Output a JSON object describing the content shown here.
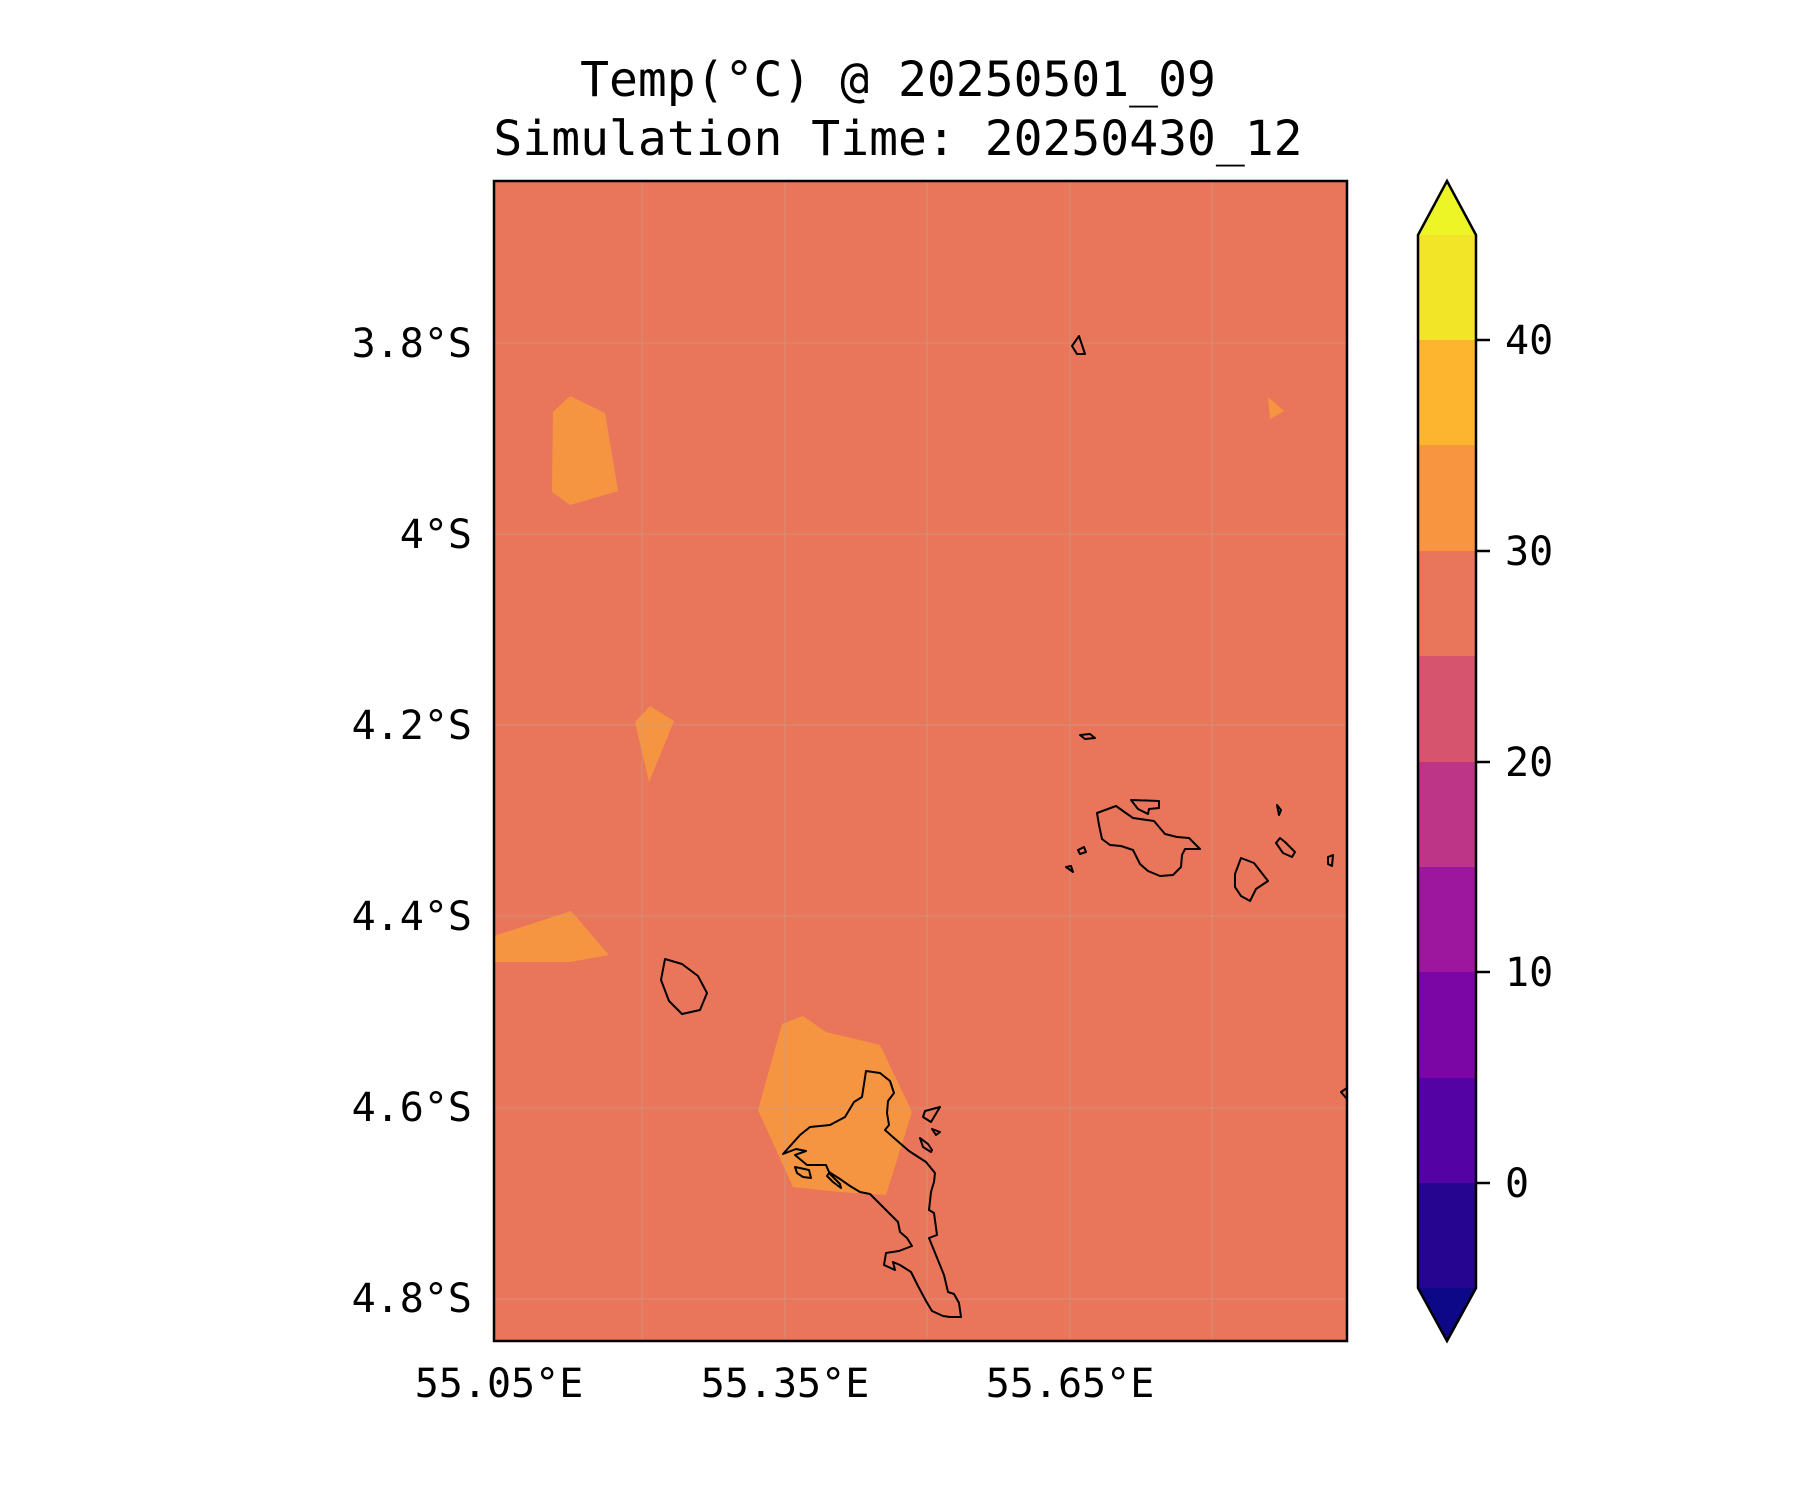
{
  "title": {
    "line1": "Temp(°C) @ 20250501_09",
    "line2": "Simulation Time: 20250430_12"
  },
  "axes": {
    "x_ticks": [
      "55.05°E",
      "55.35°E",
      "55.65°E"
    ],
    "y_ticks": [
      "3.8°S",
      "4°S",
      "4.2°S",
      "4.4°S",
      "4.6°S",
      "4.8°S"
    ]
  },
  "colorbar": {
    "ticks": [
      "40",
      "30",
      "20",
      "10",
      "0"
    ],
    "colors": [
      "#eef526",
      "#f2e427",
      "#fdb42f",
      "#f89541",
      "#e9765a",
      "#d6546e",
      "#bc3587",
      "#9c179e",
      "#7c05a5",
      "#5402a3",
      "#260591",
      "#0d0887"
    ]
  },
  "map": {
    "background_color": "#e9765a",
    "warm_patch_color": "#f69541",
    "coastline_color": "#000000",
    "grid_color": "#c9c9c9"
  }
}
